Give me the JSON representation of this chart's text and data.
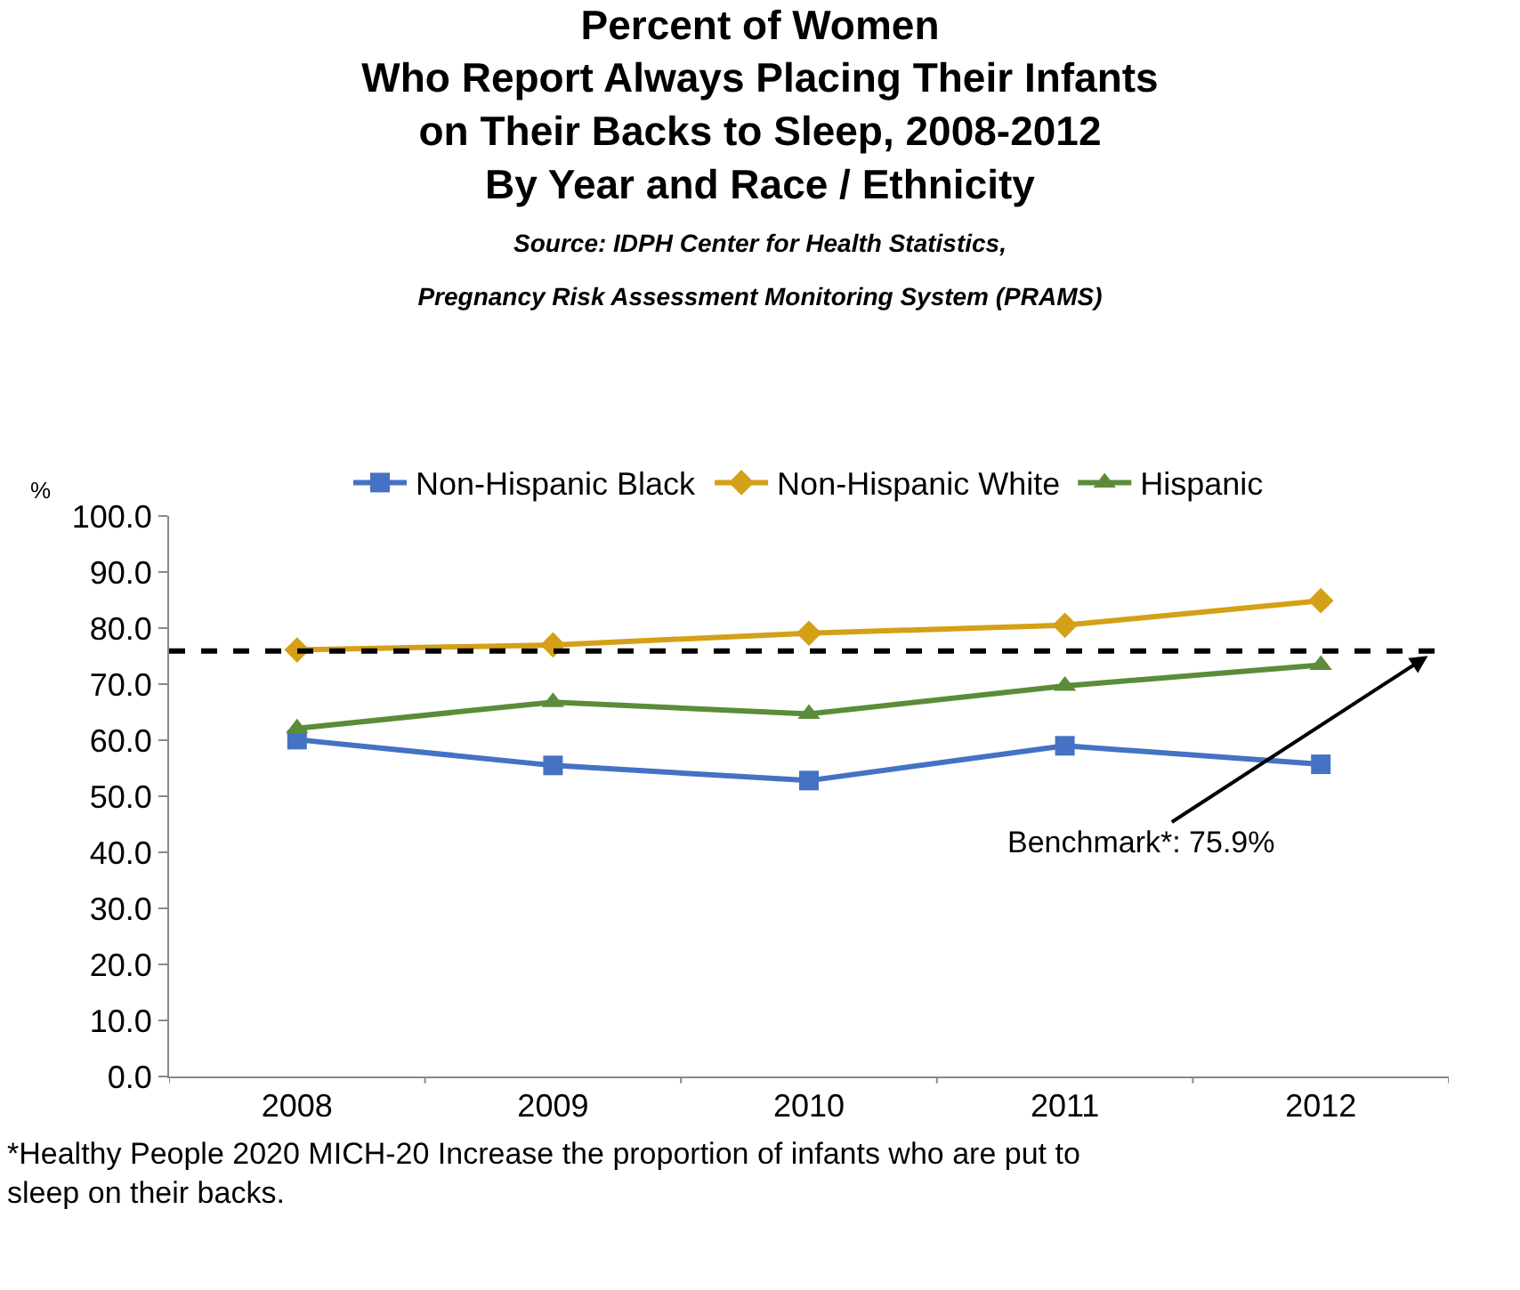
{
  "chart_data": {
    "type": "line",
    "title": "Percent of Women\nWho Report Always Placing Their Infants\non Their Backs to Sleep, 2008-2012\nBy Year and Race / Ethnicity",
    "subtitle": "Source: IDPH Center for Health Statistics,\nPregnancy Risk Assessment Monitoring System (PRAMS)",
    "ylabel": "%",
    "categories": [
      "2008",
      "2009",
      "2010",
      "2011",
      "2012"
    ],
    "series": [
      {
        "name": "Non-Hispanic Black",
        "color": "#4472c4",
        "marker": "square",
        "values": [
          60.1,
          55.5,
          52.8,
          59.0,
          55.7
        ]
      },
      {
        "name": "Non-Hispanic White",
        "color": "#d4a017",
        "marker": "diamond",
        "values": [
          76.1,
          77.0,
          79.1,
          80.5,
          84.9
        ]
      },
      {
        "name": "Hispanic",
        "color": "#5b8c3a",
        "marker": "triangle",
        "values": [
          62.1,
          66.8,
          64.7,
          69.7,
          73.4
        ]
      }
    ],
    "ylim": [
      0,
      100
    ],
    "yticks": [
      {
        "value": 0,
        "label": "0.0"
      },
      {
        "value": 10,
        "label": "10.0"
      },
      {
        "value": 20,
        "label": "20.0"
      },
      {
        "value": 30,
        "label": "30.0"
      },
      {
        "value": 40,
        "label": "40.0"
      },
      {
        "value": 50,
        "label": "50.0"
      },
      {
        "value": 60,
        "label": "60.0"
      },
      {
        "value": 70,
        "label": "70.0"
      },
      {
        "value": 80,
        "label": "80.0"
      },
      {
        "value": 90,
        "label": "90.0"
      },
      {
        "value": 100,
        "label": "100.0"
      }
    ],
    "ref_lines": [
      {
        "axis": "y",
        "value": 75.9,
        "label": "Benchmark*: 75.9%",
        "color": "#000000",
        "line_style": "dashed"
      }
    ],
    "annotations": [
      "*Healthy People 2020 MICH-20 Increase the proportion of infants who are put to sleep on their backs."
    ],
    "grid": false,
    "legend": "top",
    "line_style": "solid"
  }
}
